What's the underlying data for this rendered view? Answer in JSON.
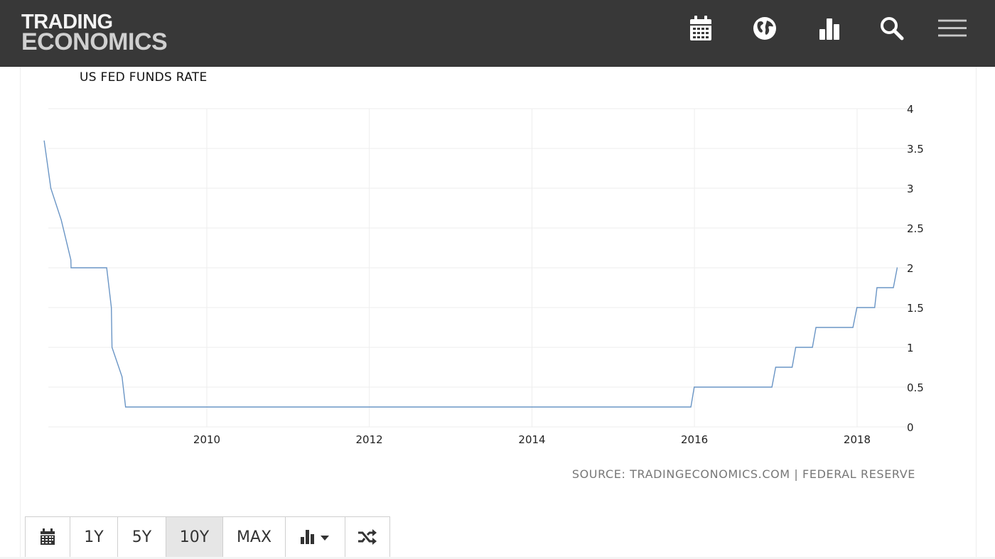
{
  "header": {
    "logo_line1": "TRADING",
    "logo_line2": "ECONOMICS",
    "icons": [
      "calendar-icon",
      "globe-icon",
      "bar-chart-icon",
      "search-icon",
      "menu-icon"
    ]
  },
  "chart_data": {
    "type": "line",
    "title": "US FED FUNDS RATE",
    "xlabel": "",
    "ylabel": "",
    "x_ticks": [
      "2010",
      "2012",
      "2014",
      "2016",
      "2018"
    ],
    "y_ticks": [
      "0",
      "0.5",
      "1",
      "1.5",
      "2",
      "2.5",
      "3",
      "3.5",
      "4"
    ],
    "ylim": [
      0,
      4
    ],
    "xlim": [
      "2008-01-01",
      "2018-07-01"
    ],
    "y_axis_side": "right",
    "grid": true,
    "color": "#6a95c5",
    "series": [
      {
        "points": [
          [
            "2008-01-01",
            3.6
          ],
          [
            "2008-01-31",
            3.0
          ],
          [
            "2008-03-18",
            2.6
          ],
          [
            "2008-04-30",
            2.1
          ],
          [
            "2008-05-01",
            2.0
          ],
          [
            "2008-10-08",
            2.0
          ],
          [
            "2008-10-29",
            1.5
          ],
          [
            "2008-11-01",
            1.0
          ],
          [
            "2008-12-16",
            0.63
          ],
          [
            "2009-01-01",
            0.25
          ],
          [
            "2015-12-16",
            0.25
          ],
          [
            "2015-12-31",
            0.5
          ],
          [
            "2016-12-14",
            0.5
          ],
          [
            "2016-12-31",
            0.75
          ],
          [
            "2017-03-15",
            0.75
          ],
          [
            "2017-03-31",
            1.0
          ],
          [
            "2017-06-14",
            1.0
          ],
          [
            "2017-06-30",
            1.25
          ],
          [
            "2017-12-13",
            1.25
          ],
          [
            "2017-12-31",
            1.5
          ],
          [
            "2018-03-21",
            1.5
          ],
          [
            "2018-03-31",
            1.75
          ],
          [
            "2018-06-13",
            1.75
          ],
          [
            "2018-06-30",
            2.0
          ],
          [
            "2018-07-01",
            2.0
          ]
        ]
      }
    ]
  },
  "source": "SOURCE: TRADINGECONOMICS.COM | FEDERAL RESERVE",
  "toolbar": {
    "y1": "1Y",
    "y5": "5Y",
    "y10": "10Y",
    "max": "MAX",
    "active": "10Y"
  }
}
